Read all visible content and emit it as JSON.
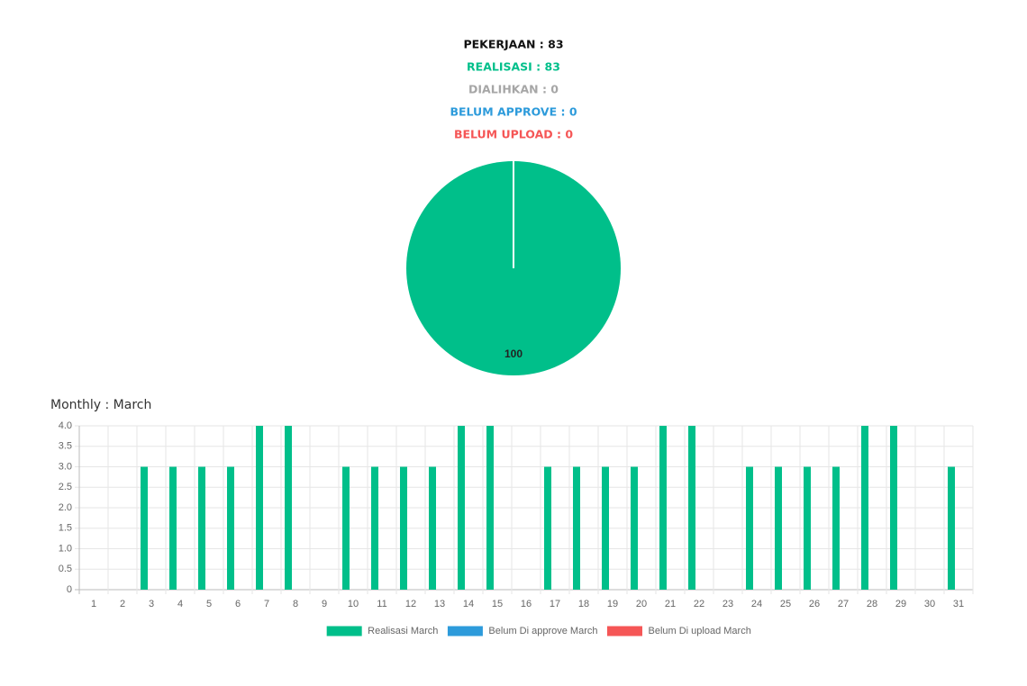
{
  "stats": [
    {
      "text": "PEKERJAAN : 83",
      "color": "#111111"
    },
    {
      "text": "REALISASI : 83",
      "color": "#00bf8a"
    },
    {
      "text": "DIALIHKAN : 0",
      "color": "#a6a6a6"
    },
    {
      "text": "BELUM APPROVE : 0",
      "color": "#2d9bdb"
    },
    {
      "text": "BELUM UPLOAD : 0",
      "color": "#f55656"
    }
  ],
  "chart_data": [
    {
      "type": "pie",
      "values": [
        100
      ],
      "colors": [
        "#00bf8a"
      ]
    },
    {
      "type": "bar",
      "title": "Monthly : March",
      "categories": [
        "1",
        "2",
        "3",
        "4",
        "5",
        "6",
        "7",
        "8",
        "9",
        "10",
        "11",
        "12",
        "13",
        "14",
        "15",
        "16",
        "17",
        "18",
        "19",
        "20",
        "21",
        "22",
        "23",
        "24",
        "25",
        "26",
        "27",
        "28",
        "29",
        "30",
        "31"
      ],
      "series": [
        {
          "name": "Realisasi March",
          "color": "#00bf8a",
          "values": [
            0,
            0,
            3,
            3,
            3,
            3,
            4,
            4,
            0,
            3,
            3,
            3,
            3,
            4,
            4,
            0,
            3,
            3,
            3,
            3,
            4,
            4,
            0,
            3,
            3,
            3,
            3,
            4,
            4,
            0,
            3
          ]
        },
        {
          "name": "Belum Di approve March",
          "color": "#2d9bdb",
          "values": [
            0,
            0,
            0,
            0,
            0,
            0,
            0,
            0,
            0,
            0,
            0,
            0,
            0,
            0,
            0,
            0,
            0,
            0,
            0,
            0,
            0,
            0,
            0,
            0,
            0,
            0,
            0,
            0,
            0,
            0,
            0
          ]
        },
        {
          "name": "Belum Di upload March",
          "color": "#f55656",
          "values": [
            0,
            0,
            0,
            0,
            0,
            0,
            0,
            0,
            0,
            0,
            0,
            0,
            0,
            0,
            0,
            0,
            0,
            0,
            0,
            0,
            0,
            0,
            0,
            0,
            0,
            0,
            0,
            0,
            0,
            0,
            0
          ]
        }
      ],
      "ylim": [
        0,
        4
      ],
      "yticks": [
        0,
        0.5,
        {
          "value": 1,
          "label": "1.0"
        },
        1.5,
        {
          "value": 2,
          "label": "2.0"
        },
        2.5,
        {
          "value": 3,
          "label": "3.0"
        },
        3.5,
        {
          "value": 4,
          "label": "4.0"
        }
      ],
      "grid": true,
      "legend": "bottom"
    }
  ]
}
